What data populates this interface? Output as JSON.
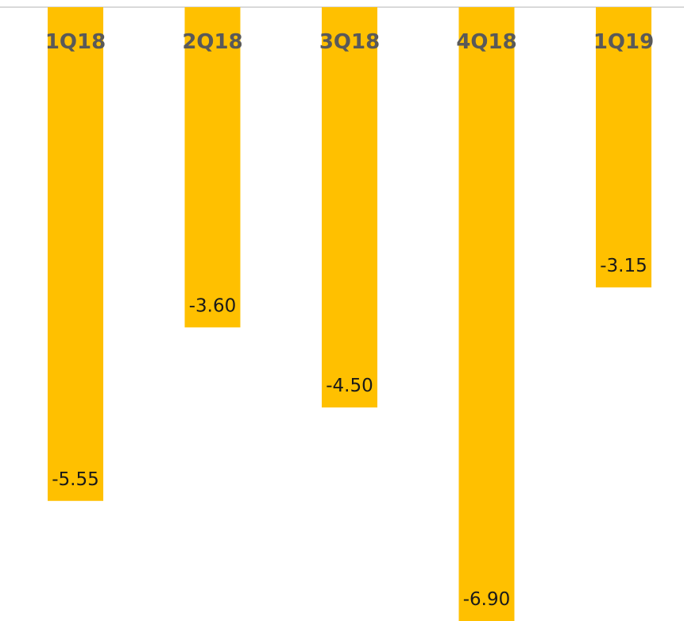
{
  "chart_data": {
    "type": "bar",
    "orientation": "vertical-negative",
    "categories": [
      "1Q18",
      "2Q18",
      "3Q18",
      "4Q18",
      "1Q19"
    ],
    "values": [
      -5.55,
      -3.6,
      -4.5,
      -6.9,
      -3.15
    ],
    "value_labels": [
      "-5.55",
      "-3.60",
      "-4.50",
      "-6.90",
      "-3.15"
    ],
    "title": "",
    "xlabel": "",
    "ylabel": "",
    "ylim": [
      -6.9,
      0
    ],
    "grid": false,
    "legend": "none",
    "category_label_position": "top-inside-bar",
    "value_label_position": "bottom-inside-bar",
    "colors": {
      "bar": "#FFC000",
      "axis": "#D9D9D9",
      "category_label": "#595959",
      "value_label": "#1a1a1a"
    }
  }
}
